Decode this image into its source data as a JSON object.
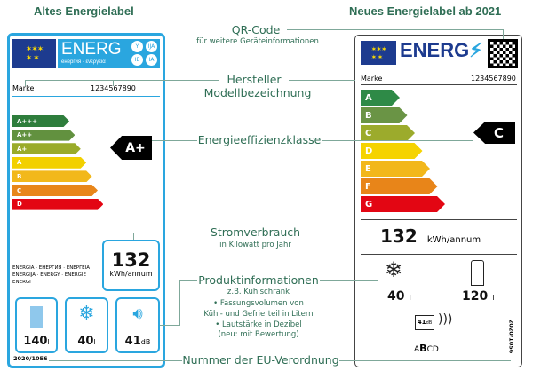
{
  "headings": {
    "old": "Altes Energielabel",
    "new": "Neues Energielabel ab 2021"
  },
  "annotations": {
    "qr": "QR-Code",
    "qr_sub": "für weitere Geräteinformationen",
    "manufacturer": "Hersteller",
    "model": "Modellbezeichnung",
    "efficiency": "Energieeffizienzklasse",
    "consumption": "Stromverbrauch",
    "consumption_sub": "in Kilowatt pro Jahr",
    "product": "Produktinformationen",
    "product_sub": "z.B. Kühlschrank",
    "bullet1a": "• Fassungsvolumen von",
    "bullet1b": "Kühl- und Gefrierteil in Litern",
    "bullet2a": "• Lautstärke in Dezibel",
    "bullet2b": "(neu: mit Bewertung)",
    "regulation": "Nummer der EU-Verordnung"
  },
  "old_label": {
    "logo": "ENERG",
    "logo_sub": "енергия · ενέργεια",
    "badges": [
      "Y",
      "IJA",
      "IE",
      "IA"
    ],
    "brand": "Marke",
    "model": "1234567890",
    "classes": [
      {
        "label": "A+++",
        "color": "#2e7d3c"
      },
      {
        "label": "A++",
        "color": "#62913f"
      },
      {
        "label": "A+",
        "color": "#9aab2a"
      },
      {
        "label": "A",
        "color": "#f2d000"
      },
      {
        "label": "B",
        "color": "#f2b81b"
      },
      {
        "label": "C",
        "color": "#e8861a"
      },
      {
        "label": "D",
        "color": "#e30613"
      }
    ],
    "rating": "A+",
    "kwh": "132",
    "kwh_unit": "kWh/annum",
    "languages": [
      "ENERGIA · ЕНЕРГИЯ · ΕΝΕΡΓΕΙΑ",
      "ENERGIJA · ENERGY · ENERGIE",
      "ENERGI"
    ],
    "volume_total": "140",
    "volume_unit": "l",
    "freezer": "40",
    "freezer_unit": "l",
    "noise": "41",
    "noise_unit": "dB",
    "regulation": "2020/1056"
  },
  "new_label": {
    "logo": "ENERG",
    "brand": "Marke",
    "model": "1234567890",
    "classes": [
      {
        "label": "A",
        "color": "#2e8a47"
      },
      {
        "label": "B",
        "color": "#6a9445"
      },
      {
        "label": "C",
        "color": "#9cab2c"
      },
      {
        "label": "D",
        "color": "#f5d300"
      },
      {
        "label": "E",
        "color": "#f2b71b"
      },
      {
        "label": "F",
        "color": "#e88519"
      },
      {
        "label": "G",
        "color": "#e30613"
      }
    ],
    "rating": "C",
    "kwh": "132",
    "kwh_unit": "kWh/annum",
    "freezer": "40",
    "freezer_unit": "l",
    "fridge": "120",
    "fridge_unit": "l",
    "noise": "41",
    "noise_unit": "dB",
    "noise_classes": [
      "A",
      "B",
      "C",
      "D"
    ],
    "noise_class_selected": "B",
    "regulation": "2020/1056"
  },
  "colors": {
    "old_border": "#2aa6df",
    "annotation": "#2f6e55",
    "eu_blue": "#1d3b8f"
  }
}
